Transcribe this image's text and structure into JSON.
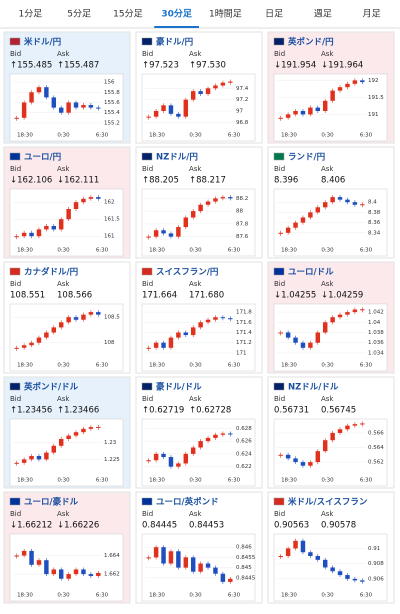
{
  "tabs": {
    "items": [
      "1分足",
      "5分足",
      "15分足",
      "30分足",
      "1時間足",
      "日足",
      "週足",
      "月足"
    ],
    "selected": 3
  },
  "cards": [
    {
      "name": "米ドル/円",
      "bid_label": "Bid",
      "ask_label": "Ask",
      "bid": "↑155.485",
      "ask": "↑155.487",
      "highlight": "up",
      "flag": "#b22234",
      "chart": {
        "ylim": [
          155.1,
          156.1
        ],
        "yticks": [
          156,
          155.8,
          155.6,
          155.4,
          155.2
        ],
        "xlabels": [
          "18:30",
          "0:30",
          "6:30"
        ],
        "values": [
          155.3,
          155.6,
          155.8,
          155.9,
          155.7,
          155.5,
          155.4,
          155.6,
          155.5,
          155.55,
          155.5,
          155.48
        ]
      }
    },
    {
      "name": "豪ドル/円",
      "bid_label": "Bid",
      "ask_label": "Ask",
      "bid": "↑97.523",
      "ask": "↑97.530",
      "highlight": "none",
      "flag": "#012169",
      "chart": {
        "ylim": [
          96.7,
          97.6
        ],
        "yticks": [
          97.4,
          97.2,
          97,
          96.8
        ],
        "xlabels": [
          "18:30",
          "0:30",
          "6:30"
        ],
        "values": [
          96.9,
          97.0,
          97.1,
          96.95,
          96.9,
          97.2,
          97.35,
          97.3,
          97.4,
          97.45,
          97.5,
          97.52
        ]
      }
    },
    {
      "name": "英ポンド/円",
      "bid_label": "Bid",
      "ask_label": "Ask",
      "bid": "↓191.954",
      "ask": "↓191.964",
      "highlight": "down",
      "flag": "#012169",
      "chart": {
        "ylim": [
          190.6,
          192.1
        ],
        "yticks": [
          192,
          191.5,
          191
        ],
        "xlabels": [
          "18:30",
          "0:30",
          "6:30"
        ],
        "values": [
          190.9,
          191.0,
          191.1,
          191.0,
          191.2,
          191.1,
          191.4,
          191.7,
          191.8,
          191.9,
          192.0,
          191.95
        ]
      }
    },
    {
      "name": "ユーロ/円",
      "bid_label": "Bid",
      "ask_label": "Ask",
      "bid": "↓162.106",
      "ask": "↓162.111",
      "highlight": "down",
      "flag": "#003399",
      "chart": {
        "ylim": [
          160.8,
          162.3
        ],
        "yticks": [
          162,
          161.5,
          161
        ],
        "xlabels": [
          "18:30",
          "0:30",
          "6:30"
        ],
        "values": [
          161.0,
          161.1,
          161.0,
          161.2,
          161.3,
          161.2,
          161.5,
          161.8,
          162.0,
          162.1,
          162.15,
          162.1
        ]
      }
    },
    {
      "name": "NZドル/円",
      "bid_label": "Bid",
      "ask_label": "Ask",
      "bid": "↑88.205",
      "ask": "↑88.217",
      "highlight": "none",
      "flag": "#012169",
      "chart": {
        "ylim": [
          87.5,
          88.3
        ],
        "yticks": [
          88.2,
          88,
          87.8,
          87.6
        ],
        "xlabels": [
          "18:30",
          "0:30",
          "6:30"
        ],
        "values": [
          87.6,
          87.7,
          87.65,
          87.6,
          87.75,
          87.9,
          88.0,
          88.1,
          88.15,
          88.2,
          88.22,
          88.2
        ]
      }
    },
    {
      "name": "ランド/円",
      "bid_label": "Bid",
      "ask_label": "Ask",
      "bid": "8.396",
      "ask": "8.406",
      "highlight": "none",
      "flag": "#007a4d",
      "chart": {
        "ylim": [
          8.32,
          8.42
        ],
        "yticks": [
          8.4,
          8.38,
          8.36,
          8.34
        ],
        "xlabels": [
          "18:30",
          "0:30",
          "6:30"
        ],
        "values": [
          8.34,
          8.35,
          8.36,
          8.37,
          8.38,
          8.39,
          8.4,
          8.41,
          8.405,
          8.4,
          8.395,
          8.396
        ]
      }
    },
    {
      "name": "カナダドル/円",
      "bid_label": "Bid",
      "ask_label": "Ask",
      "bid": "108.551",
      "ask": "108.566",
      "highlight": "none",
      "flag": "#d52b1e",
      "chart": {
        "ylim": [
          107.7,
          108.7
        ],
        "yticks": [
          108.5,
          108
        ],
        "xlabels": [
          "18:30",
          "0:30",
          "6:30"
        ],
        "values": [
          107.9,
          107.95,
          108.0,
          108.1,
          108.2,
          108.3,
          108.4,
          108.5,
          108.45,
          108.55,
          108.6,
          108.55
        ]
      }
    },
    {
      "name": "スイスフラン/円",
      "bid_label": "Bid",
      "ask_label": "Ask",
      "bid": "171.664",
      "ask": "171.680",
      "highlight": "none",
      "flag": "#d52b1e",
      "chart": {
        "ylim": [
          170.9,
          171.9
        ],
        "yticks": [
          171.8,
          171.6,
          171.4,
          171.2,
          171
        ],
        "xlabels": [
          "18:30",
          "0:30",
          "6:30"
        ],
        "values": [
          171.1,
          171.2,
          171.1,
          171.3,
          171.4,
          171.35,
          171.5,
          171.6,
          171.65,
          171.7,
          171.68,
          171.66
        ]
      }
    },
    {
      "name": "ユーロ/ドル",
      "bid_label": "Bid",
      "ask_label": "Ask",
      "bid": "↓1.04255",
      "ask": "↓1.04259",
      "highlight": "down",
      "flag": "#003399",
      "chart": {
        "ylim": [
          1.033,
          1.043
        ],
        "yticks": [
          1.042,
          1.04,
          1.038,
          1.036,
          1.034
        ],
        "xlabels": [
          "18:30",
          "0:30",
          "6:30"
        ],
        "values": [
          1.038,
          1.037,
          1.036,
          1.035,
          1.036,
          1.038,
          1.04,
          1.041,
          1.0415,
          1.042,
          1.0425,
          1.04255
        ]
      }
    },
    {
      "name": "英ポンド/ドル",
      "bid_label": "Bid",
      "ask_label": "Ask",
      "bid": "↑1.23456",
      "ask": "↑1.23466",
      "highlight": "up",
      "flag": "#012169",
      "chart": {
        "ylim": [
          1.221,
          1.236
        ],
        "yticks": [
          1.23,
          1.225
        ],
        "xlabels": [
          "18:30",
          "0:30",
          "6:30"
        ],
        "values": [
          1.224,
          1.225,
          1.226,
          1.225,
          1.227,
          1.229,
          1.231,
          1.232,
          1.233,
          1.234,
          1.2345,
          1.23456
        ]
      }
    },
    {
      "name": "豪ドル/ドル",
      "bid_label": "Bid",
      "ask_label": "Ask",
      "bid": "↑0.62719",
      "ask": "↑0.62728",
      "highlight": "none",
      "flag": "#012169",
      "chart": {
        "ylim": [
          0.621,
          0.629
        ],
        "yticks": [
          0.628,
          0.626,
          0.624,
          0.622
        ],
        "xlabels": [
          "18:30",
          "0:30",
          "6:30"
        ],
        "values": [
          0.623,
          0.624,
          0.6235,
          0.622,
          0.6225,
          0.624,
          0.625,
          0.626,
          0.6265,
          0.627,
          0.6272,
          0.62719
        ]
      }
    },
    {
      "name": "NZドル/ドル",
      "bid_label": "Bid",
      "ask_label": "Ask",
      "bid": "0.56731",
      "ask": "0.56745",
      "highlight": "none",
      "flag": "#012169",
      "chart": {
        "ylim": [
          0.5605,
          0.5675
        ],
        "yticks": [
          0.566,
          0.564,
          0.562
        ],
        "xlabels": [
          "18:30",
          "0:30",
          "6:30"
        ],
        "values": [
          0.563,
          0.5625,
          0.562,
          0.5615,
          0.562,
          0.5635,
          0.565,
          0.566,
          0.5665,
          0.567,
          0.5672,
          0.5673
        ]
      }
    },
    {
      "name": "ユーロ/豪ドル",
      "bid_label": "Bid",
      "ask_label": "Ask",
      "bid": "↓1.66212",
      "ask": "↓1.66226",
      "highlight": "down",
      "flag": "#003399",
      "chart": {
        "ylim": [
          1.6605,
          1.666
        ],
        "yticks": [
          1.664,
          1.662
        ],
        "xlabels": [
          "18:30",
          "0:30",
          "6:30"
        ],
        "values": [
          1.664,
          1.6645,
          1.663,
          1.6635,
          1.662,
          1.6625,
          1.6615,
          1.662,
          1.6625,
          1.662,
          1.6618,
          1.66212
        ]
      }
    },
    {
      "name": "ユーロ/英ポンド",
      "bid_label": "Bid",
      "ask_label": "Ask",
      "bid": "0.84445",
      "ask": "0.84453",
      "highlight": "none",
      "flag": "#003399",
      "chart": {
        "ylim": [
          0.844,
          0.8465
        ],
        "yticks": [
          0.846,
          0.8455,
          0.845,
          0.8445
        ],
        "xlabels": [
          "18:30",
          "0:30",
          "6:30"
        ],
        "values": [
          0.8455,
          0.846,
          0.8452,
          0.8458,
          0.845,
          0.8455,
          0.8448,
          0.8452,
          0.845,
          0.8447,
          0.8443,
          0.84445
        ]
      }
    },
    {
      "name": "米ドル/スイスフラン",
      "bid_label": "Bid",
      "ask_label": "Ask",
      "bid": "0.90563",
      "ask": "0.90578",
      "highlight": "none",
      "flag": "#d52b1e",
      "chart": {
        "ylim": [
          0.9048,
          0.9115
        ],
        "yticks": [
          0.91,
          0.908,
          0.906
        ],
        "xlabels": [
          "18:30",
          "0:30",
          "6:30"
        ],
        "values": [
          0.909,
          0.91,
          0.911,
          0.9095,
          0.909,
          0.9085,
          0.9075,
          0.907,
          0.9065,
          0.906,
          0.9058,
          0.90563
        ]
      }
    }
  ]
}
